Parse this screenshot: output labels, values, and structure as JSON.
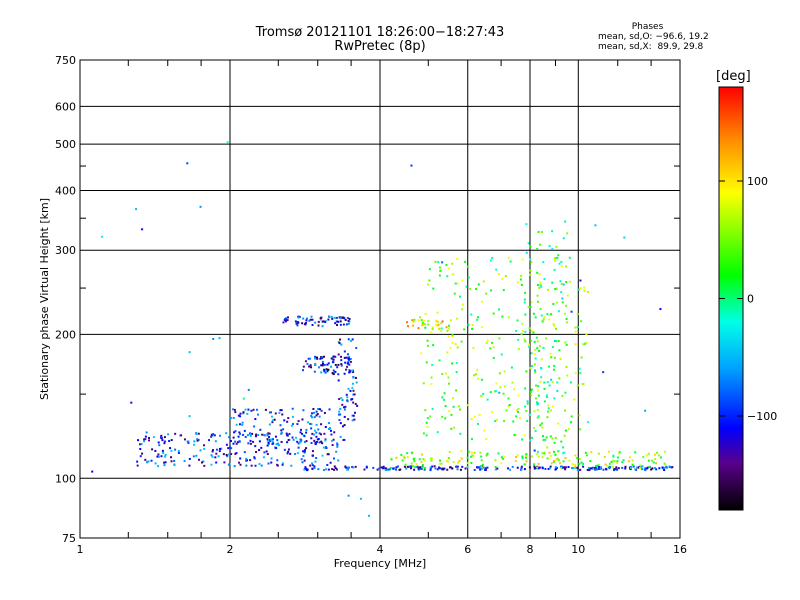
{
  "title": {
    "line1": "Tromsø 20121101 18:26:00−18:27:43",
    "line2": "RwPretec (8p)"
  },
  "stats": {
    "header": "Phases",
    "o_label": "mean, sd,O:",
    "o_values": "−96.6, 19.2",
    "x_label": "mean, sd,X:",
    "x_values": "89.9, 29.8"
  },
  "colorbar": {
    "unit": "[deg]",
    "ticks": [
      "100",
      "0",
      "−100"
    ],
    "tick_values": [
      100,
      0,
      -100
    ],
    "range": [
      -180,
      180
    ]
  },
  "chart_data": {
    "type": "scatter",
    "title": "Tromsø 20121101 18:26:00−18:27:43",
    "subtitle": "RwPretec (8p)",
    "xlabel": "Frequency [MHz]",
    "ylabel": "Stationary phase Virtual Height [km]",
    "xscale": "log",
    "yscale": "log",
    "xlim": [
      1,
      16
    ],
    "ylim": [
      75,
      750
    ],
    "xticks": [
      1,
      2,
      4,
      6,
      8,
      10,
      16
    ],
    "xtick_labels": [
      "1",
      "2",
      "4",
      "6",
      "8",
      "10",
      "16"
    ],
    "yticks": [
      75,
      100,
      200,
      300,
      400,
      500,
      600,
      750
    ],
    "ytick_labels": [
      "75",
      "100",
      "200",
      "300",
      "400",
      "500",
      "600",
      "750"
    ],
    "grid": true,
    "color_encoding": "phase [deg], colorbar -180 to 180",
    "clusters": [
      {
        "name": "E-layer trace O",
        "f_range": [
          2.8,
          15.5
        ],
        "h_range": [
          104,
          106
        ],
        "phase": -105,
        "count": 240
      },
      {
        "name": "E-layer trace X",
        "f_range": [
          4.2,
          15.5
        ],
        "h_range": [
          105,
          114
        ],
        "phase": 60,
        "count": 160
      },
      {
        "name": "Es / low F spread",
        "f_range": [
          1.3,
          3.3
        ],
        "h_range": [
          106,
          125
        ],
        "phase": -95,
        "count": 260
      },
      {
        "name": "F1 rising trace",
        "f_range": [
          2.0,
          3.4
        ],
        "h_range": [
          118,
          140
        ],
        "phase": -100,
        "count": 140
      },
      {
        "name": "F-layer 210 km",
        "f_range": [
          2.5,
          3.5
        ],
        "h_range": [
          208,
          218
        ],
        "phase": -105,
        "count": 70
      },
      {
        "name": "F-layer 210 km X",
        "f_range": [
          4.5,
          5.6
        ],
        "h_range": [
          205,
          215
        ],
        "phase": 90,
        "count": 30
      },
      {
        "name": "F2 trace O",
        "f_range": [
          2.8,
          3.5
        ],
        "h_range": [
          165,
          180
        ],
        "phase": -110,
        "count": 70
      },
      {
        "name": "Cusp 3.4 MHz",
        "f_range": [
          3.3,
          3.6
        ],
        "h_range": [
          130,
          200
        ],
        "phase": -100,
        "count": 60
      },
      {
        "name": "Scatter 5-10 MHz",
        "f_range": [
          4.8,
          10.5
        ],
        "h_range": [
          120,
          290
        ],
        "phase": 40,
        "count": 300
      },
      {
        "name": "Scatter 8 MHz column",
        "f_range": [
          7.8,
          9.5
        ],
        "h_range": [
          110,
          350
        ],
        "phase": 20,
        "count": 120
      },
      {
        "name": "Isolated points",
        "f_range": [
          1,
          16
        ],
        "h_range": [
          78,
          520
        ],
        "phase": -60,
        "count": 30
      }
    ]
  }
}
